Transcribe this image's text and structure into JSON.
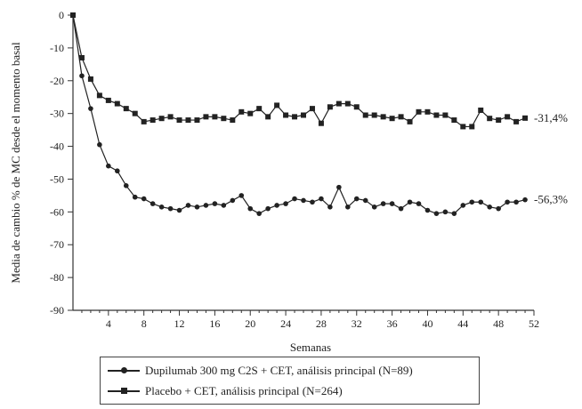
{
  "chart_data": {
    "type": "line",
    "xlabel": "Semanas",
    "ylabel": "Media de cambio % de MC desde el momento basal",
    "xlim": [
      0,
      52
    ],
    "ylim": [
      -90,
      0
    ],
    "xticks": [
      "4",
      "8",
      "12",
      "16",
      "20",
      "24",
      "28",
      "32",
      "36",
      "40",
      "44",
      "48",
      "52"
    ],
    "yticks": [
      "0",
      "-10",
      "-20",
      "-30",
      "-40",
      "-50",
      "-60",
      "-70",
      "-80",
      "-90"
    ],
    "grid": false,
    "legend_placement": "bottom",
    "series": [
      {
        "name": "Dupilumab 300 mg C2S + CET, análisis principal (N=89)",
        "marker": "circle",
        "color": "#222222",
        "end_label": "-56,3%",
        "x": [
          0,
          1,
          2,
          3,
          4,
          5,
          6,
          7,
          8,
          9,
          10,
          11,
          12,
          13,
          14,
          15,
          16,
          17,
          18,
          19,
          20,
          21,
          22,
          23,
          24,
          25,
          26,
          27,
          28,
          29,
          30,
          31,
          32,
          33,
          34,
          35,
          36,
          37,
          38,
          39,
          40,
          41,
          42,
          43,
          44,
          45,
          46,
          47,
          48,
          49,
          50,
          51
        ],
        "y": [
          0,
          -18.5,
          -28.5,
          -39.5,
          -46,
          -47.5,
          -52,
          -55.5,
          -56,
          -57.5,
          -58.5,
          -59,
          -59.5,
          -58,
          -58.5,
          -58,
          -57.5,
          -58,
          -56.5,
          -55,
          -59,
          -60.5,
          -59,
          -58,
          -57.5,
          -56,
          -56.5,
          -57,
          -56,
          -58.5,
          -52.5,
          -58.5,
          -56,
          -56.5,
          -58.5,
          -57.5,
          -57.5,
          -59,
          -57,
          -57.5,
          -59.5,
          -60.5,
          -60,
          -60.5,
          -58,
          -57,
          -57,
          -58.5,
          -59,
          -57,
          -57,
          -56.3
        ]
      },
      {
        "name": "Placebo + CET, análisis principal (N=264)",
        "marker": "square",
        "color": "#222222",
        "end_label": "-31,4%",
        "x": [
          0,
          1,
          2,
          3,
          4,
          5,
          6,
          7,
          8,
          9,
          10,
          11,
          12,
          13,
          14,
          15,
          16,
          17,
          18,
          19,
          20,
          21,
          22,
          23,
          24,
          25,
          26,
          27,
          28,
          29,
          30,
          31,
          32,
          33,
          34,
          35,
          36,
          37,
          38,
          39,
          40,
          41,
          42,
          43,
          44,
          45,
          46,
          47,
          48,
          49,
          50,
          51
        ],
        "y": [
          0,
          -13,
          -19.5,
          -24.5,
          -26,
          -27,
          -28.5,
          -30,
          -32.5,
          -32,
          -31.5,
          -31,
          -32,
          -32,
          -32,
          -31,
          -31,
          -31.5,
          -32,
          -29.5,
          -30,
          -28.5,
          -31,
          -27.5,
          -30.5,
          -31,
          -30.5,
          -28.5,
          -33,
          -28,
          -27,
          -27,
          -28,
          -30.5,
          -30.5,
          -31,
          -31.5,
          -31,
          -32.5,
          -29.5,
          -29.5,
          -30.5,
          -30.5,
          -32,
          -34,
          -34,
          -29,
          -31.5,
          -32,
          -31,
          -32.5,
          -31.4
        ]
      }
    ]
  }
}
